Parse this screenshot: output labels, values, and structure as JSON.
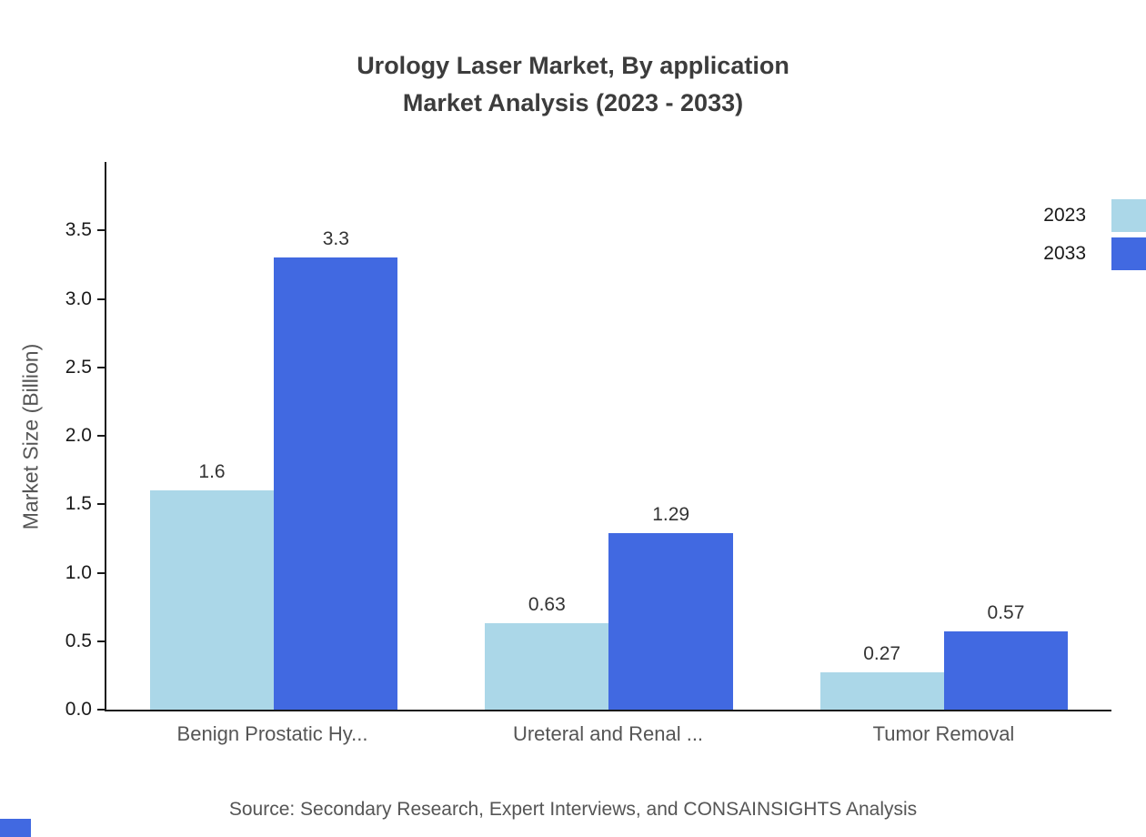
{
  "title": "Urology Laser Market, By application",
  "subtitle": "Market Analysis (2023 - 2033)",
  "source": "Source: Secondary Research, Expert Interviews, and CONSAINSIGHTS Analysis",
  "chart_data": {
    "type": "bar",
    "title": "Urology Laser Market, By application Market Analysis (2023 - 2033)",
    "categories": [
      "Benign Prostatic Hy...",
      "Ureteral and Renal ...",
      "Tumor Removal"
    ],
    "series": [
      {
        "name": "2023",
        "color": "#abd7e8",
        "values": [
          1.6,
          0.63,
          0.27
        ],
        "labels": [
          "1.6",
          "0.63",
          "0.27"
        ]
      },
      {
        "name": "2033",
        "color": "#4169e1",
        "values": [
          3.3,
          1.29,
          0.57
        ],
        "labels": [
          "3.3",
          "1.29",
          "0.57"
        ]
      }
    ],
    "xlabel": "",
    "ylabel": "Market Size (Billion)",
    "ylim": [
      0,
      4.0
    ],
    "yticks": [
      0.0,
      0.5,
      1.0,
      1.5,
      2.0,
      2.5,
      3.0,
      3.5
    ],
    "grid": false,
    "legend_position": "top-right"
  },
  "colors": {
    "axis": "#1a1a1a",
    "title_text": "#3c3c3c",
    "muted_text": "#555555",
    "corner_accent": "#4169e1"
  }
}
